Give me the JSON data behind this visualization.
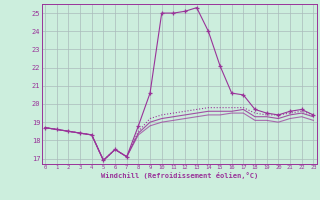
{
  "xlabel": "Windchill (Refroidissement éolien,°C)",
  "background_color": "#cceedd",
  "grid_color": "#aabbbb",
  "line_color": "#993399",
  "hours": [
    0,
    1,
    2,
    3,
    4,
    5,
    6,
    7,
    8,
    9,
    10,
    11,
    12,
    13,
    14,
    15,
    16,
    17,
    18,
    19,
    20,
    21,
    22,
    23
  ],
  "temp": [
    18.7,
    18.6,
    18.5,
    18.4,
    18.3,
    16.9,
    17.5,
    17.1,
    18.8,
    20.6,
    25.0,
    25.0,
    25.1,
    25.3,
    24.0,
    22.1,
    20.6,
    20.5,
    19.7,
    19.5,
    19.4,
    19.6,
    19.7,
    19.4
  ],
  "wc1": [
    18.7,
    18.6,
    18.5,
    18.4,
    18.3,
    16.9,
    17.5,
    17.1,
    18.5,
    19.2,
    19.4,
    19.5,
    19.6,
    19.7,
    19.8,
    19.8,
    19.8,
    19.8,
    19.5,
    19.4,
    19.4,
    19.5,
    19.6,
    19.4
  ],
  "wc2": [
    18.7,
    18.6,
    18.5,
    18.4,
    18.3,
    16.9,
    17.5,
    17.1,
    18.4,
    19.0,
    19.2,
    19.3,
    19.4,
    19.5,
    19.6,
    19.6,
    19.6,
    19.7,
    19.3,
    19.3,
    19.2,
    19.4,
    19.5,
    19.3
  ],
  "wc3": [
    18.7,
    18.6,
    18.5,
    18.4,
    18.3,
    16.9,
    17.5,
    17.1,
    18.3,
    18.8,
    19.0,
    19.1,
    19.2,
    19.3,
    19.4,
    19.4,
    19.5,
    19.5,
    19.1,
    19.1,
    19.0,
    19.2,
    19.3,
    19.1
  ],
  "ylim": [
    16.7,
    25.5
  ],
  "yticks": [
    17,
    18,
    19,
    20,
    21,
    22,
    23,
    24,
    25
  ]
}
